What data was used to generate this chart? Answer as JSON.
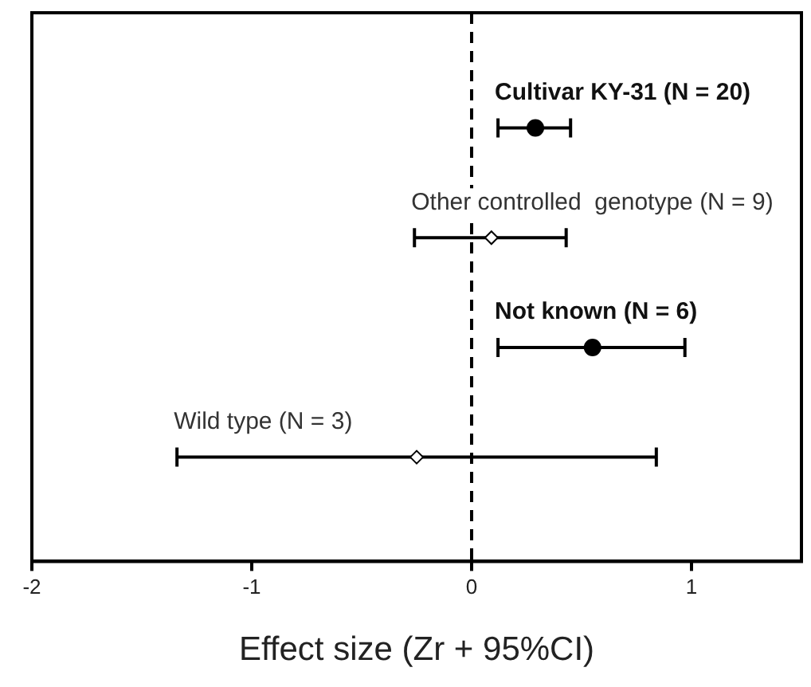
{
  "chart_data": {
    "type": "scatter",
    "orientation": "horizontal",
    "xlabel": "Effect size (Zr + 95%CI)",
    "categories": [
      "Cultivar KY-31 (N = 20)",
      "Other controlled  genotype (N = 9)",
      "Not known (N = 6)",
      "Wild type (N = 3)"
    ],
    "series": [
      {
        "color": "#000000",
        "marker": "circle",
        "values": [
          0.29,
          null,
          0.55,
          null
        ],
        "errors": [
          [
            0.12,
            0.45
          ],
          null,
          [
            0.12,
            0.97
          ],
          null
        ]
      },
      {
        "color": "#000000",
        "marker": "diamond",
        "values": [
          null,
          0.09,
          null,
          -0.25
        ],
        "errors": [
          null,
          [
            -0.26,
            0.43
          ],
          null,
          [
            -1.34,
            0.84
          ]
        ]
      }
    ],
    "xlim": [
      -2,
      1.5
    ],
    "xticks": [
      -2,
      -1,
      0,
      1
    ],
    "tick_labels": "x",
    "grid": false,
    "legend": false,
    "ref_lines": [
      {
        "axis": "x",
        "value": 0,
        "line_style": "dashed",
        "color": "#000000"
      }
    ]
  }
}
